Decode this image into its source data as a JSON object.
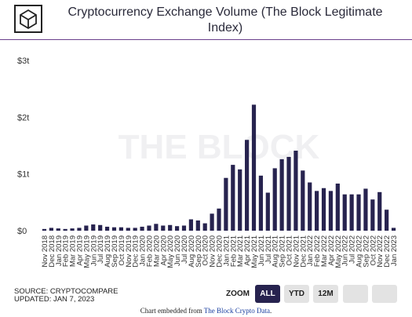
{
  "header": {
    "title": "Cryptocurrency Exchange Volume (The Block Legitimate Index)"
  },
  "chart_data": {
    "type": "bar",
    "watermark": "THE BLOCK",
    "categories": [
      "Nov 2018",
      "Dec 2018",
      "Jan 2019",
      "Feb 2019",
      "Mar 2019",
      "Apr 2019",
      "May 2019",
      "Jun 2019",
      "Jul 2019",
      "Aug 2019",
      "Sep 2019",
      "Oct 2019",
      "Nov 2019",
      "Dec 2019",
      "Jan 2020",
      "Feb 2020",
      "Mar 2020",
      "Apr 2020",
      "May 2020",
      "Jun 2020",
      "Jul 2020",
      "Aug 2020",
      "Sep 2020",
      "Oct 2020",
      "Nov 2020",
      "Dec 2020",
      "Jan 2021",
      "Feb 2021",
      "Mar 2021",
      "Apr 2021",
      "May 2021",
      "Jun 2021",
      "Jul 2021",
      "Aug 2021",
      "Sep 2021",
      "Oct 2021",
      "Nov 2021",
      "Dec 2021",
      "Jan 2022",
      "Feb 2022",
      "Mar 2022",
      "Apr 2022",
      "May 2022",
      "Jun 2022",
      "Jul 2022",
      "Aug 2022",
      "Sep 2022",
      "Oct 2022",
      "Nov 2022",
      "Dec 2022",
      "Jan 2023"
    ],
    "values": [
      0.03,
      0.05,
      0.04,
      0.03,
      0.04,
      0.05,
      0.09,
      0.11,
      0.1,
      0.07,
      0.06,
      0.06,
      0.05,
      0.05,
      0.07,
      0.09,
      0.12,
      0.09,
      0.1,
      0.08,
      0.09,
      0.2,
      0.18,
      0.13,
      0.3,
      0.39,
      0.93,
      1.16,
      1.08,
      1.6,
      2.22,
      0.97,
      0.67,
      1.1,
      1.26,
      1.3,
      1.41,
      1.06,
      0.85,
      0.7,
      0.75,
      0.7,
      0.83,
      0.64,
      0.64,
      0.64,
      0.74,
      0.55,
      0.68,
      0.37,
      0.05
    ],
    "color": "#27234f",
    "ylim": [
      0,
      3
    ],
    "yticks": [
      {
        "value": 0,
        "label": "$0"
      },
      {
        "value": 1,
        "label": "$1t"
      },
      {
        "value": 2,
        "label": "$2t"
      },
      {
        "value": 3,
        "label": "$3t"
      }
    ],
    "grid": false
  },
  "source": {
    "line1": "SOURCE: CRYPTOCOMPARE",
    "line2": "UPDATED: JAN 7, 2023"
  },
  "zoom": {
    "label": "ZOOM",
    "buttons": [
      "ALL",
      "YTD",
      "12M"
    ]
  },
  "footer": {
    "text": "Chart embedded from ",
    "link": "The Block Crypto Data",
    "end": "."
  }
}
